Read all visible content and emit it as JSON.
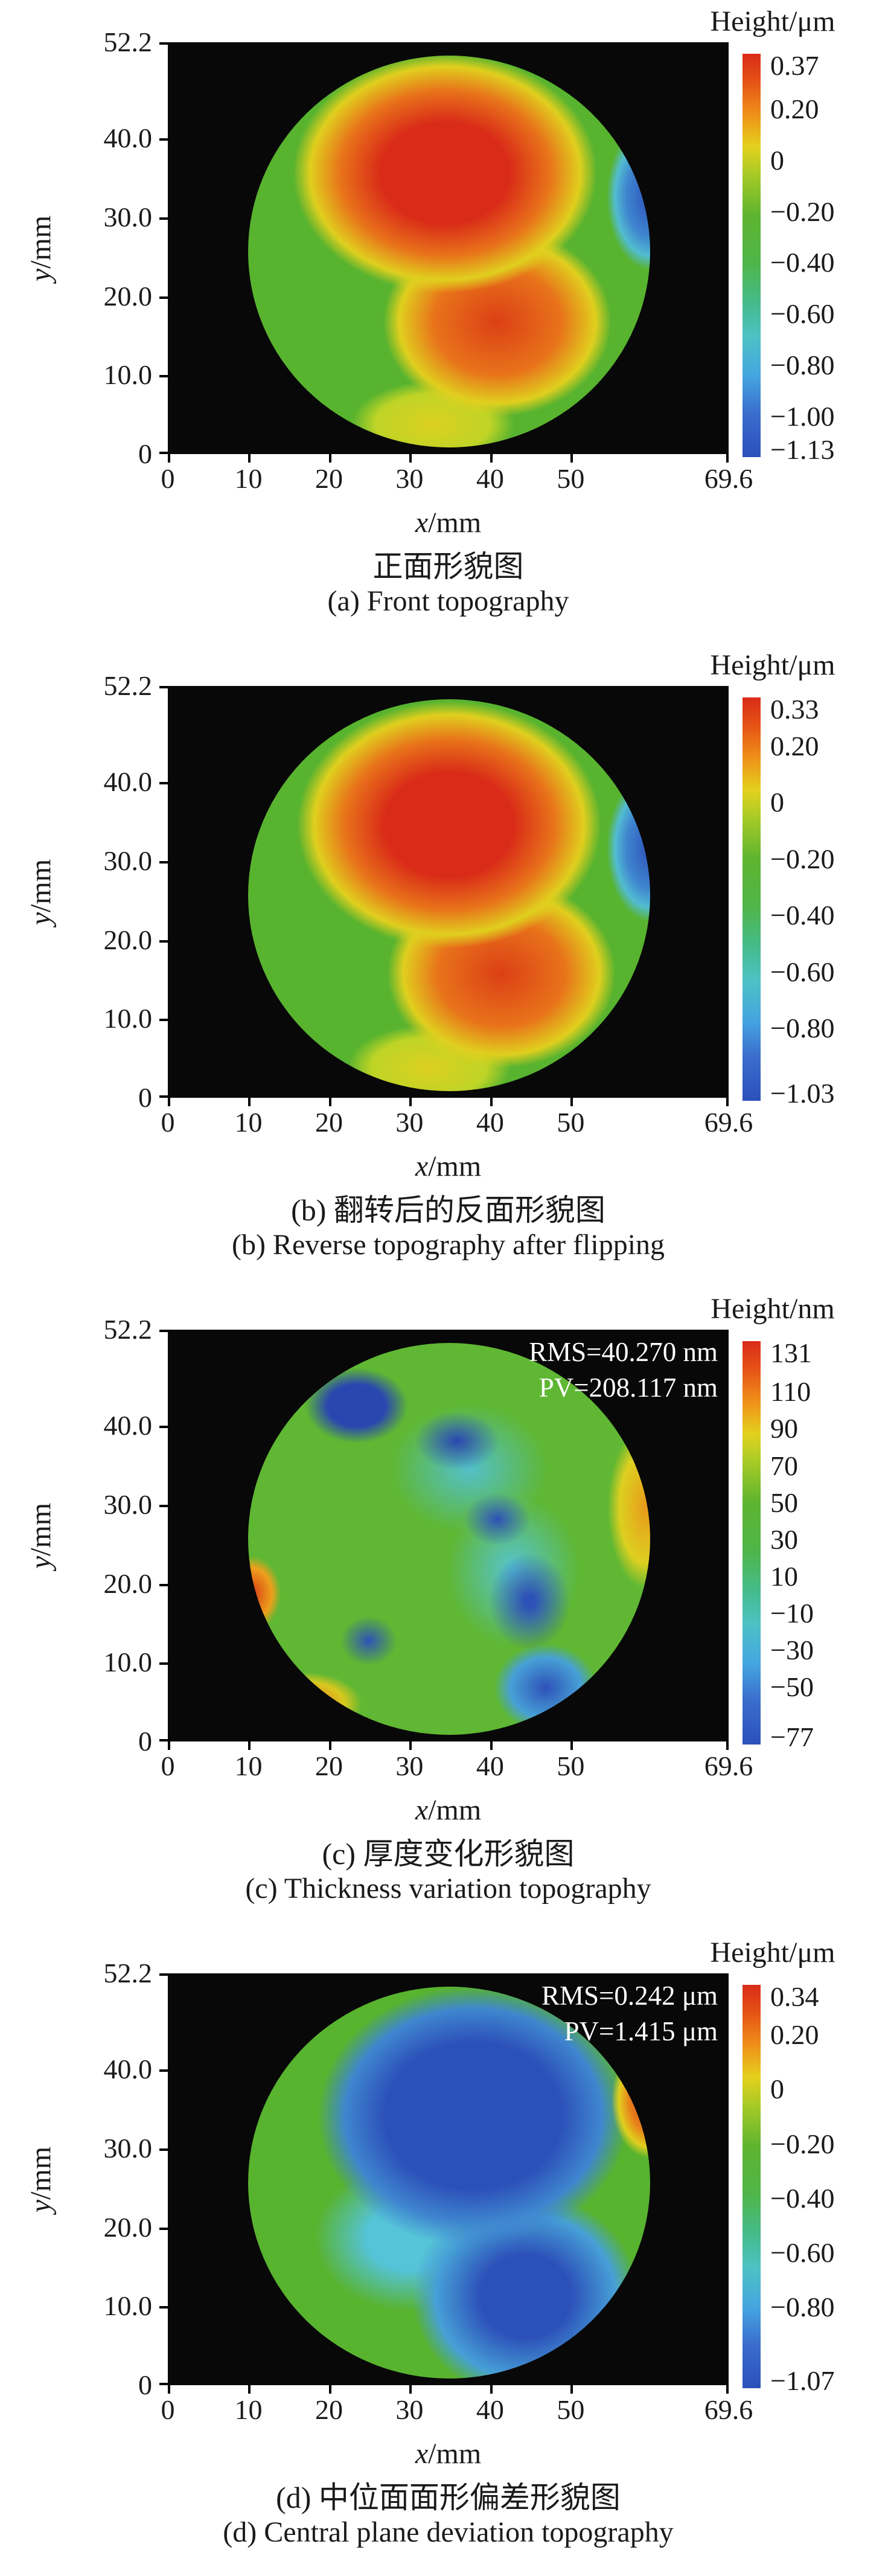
{
  "figure": {
    "panels": [
      {
        "id": "a",
        "colorbar_title": "Height/μm",
        "wafer_class": "wafer-front",
        "x_axis": {
          "label_var": "x",
          "label_unit": "/mm",
          "max": 69.6,
          "ticks": [
            {
              "value": 0,
              "label": "0"
            },
            {
              "value": 10,
              "label": "10"
            },
            {
              "value": 20,
              "label": "20"
            },
            {
              "value": 30,
              "label": "30"
            },
            {
              "value": 40,
              "label": "40"
            },
            {
              "value": 50,
              "label": "50"
            },
            {
              "value": 69.6,
              "label": "69.6"
            }
          ]
        },
        "y_axis": {
          "label_var": "y",
          "label_unit": "/mm",
          "max": 52.2,
          "ticks": [
            {
              "value": 52.2,
              "label": "52.2"
            },
            {
              "value": 40,
              "label": "40.0"
            },
            {
              "value": 30,
              "label": "30.0"
            },
            {
              "value": 20,
              "label": "20.0"
            },
            {
              "value": 10,
              "label": "10.0"
            },
            {
              "value": 0,
              "label": "0"
            }
          ]
        },
        "colorbar": {
          "max": 0.37,
          "min": -1.13,
          "ticks": [
            {
              "value": 0.37,
              "label": "0.37"
            },
            {
              "value": 0.2,
              "label": "0.20"
            },
            {
              "value": 0,
              "label": "0"
            },
            {
              "value": -0.2,
              "label": "−0.20"
            },
            {
              "value": -0.4,
              "label": "−0.40"
            },
            {
              "value": -0.6,
              "label": "−0.60"
            },
            {
              "value": -0.8,
              "label": "−0.80"
            },
            {
              "value": -1.0,
              "label": "−1.00"
            },
            {
              "value": -1.13,
              "label": "−1.13"
            }
          ]
        },
        "annotation": null,
        "caption_zh": "正面形貌图",
        "caption_en": "(a) Front topography"
      },
      {
        "id": "b",
        "colorbar_title": "Height/μm",
        "wafer_class": "wafer-reverse",
        "x_axis": {
          "label_var": "x",
          "label_unit": "/mm",
          "max": 69.6,
          "ticks": [
            {
              "value": 0,
              "label": "0"
            },
            {
              "value": 10,
              "label": "10"
            },
            {
              "value": 20,
              "label": "20"
            },
            {
              "value": 30,
              "label": "30"
            },
            {
              "value": 40,
              "label": "40"
            },
            {
              "value": 50,
              "label": "50"
            },
            {
              "value": 69.6,
              "label": "69.6"
            }
          ]
        },
        "y_axis": {
          "label_var": "y",
          "label_unit": "/mm",
          "max": 52.2,
          "ticks": [
            {
              "value": 52.2,
              "label": "52.2"
            },
            {
              "value": 40,
              "label": "40.0"
            },
            {
              "value": 30,
              "label": "30.0"
            },
            {
              "value": 20,
              "label": "20.0"
            },
            {
              "value": 10,
              "label": "10.0"
            },
            {
              "value": 0,
              "label": "0"
            }
          ]
        },
        "colorbar": {
          "max": 0.33,
          "min": -1.03,
          "ticks": [
            {
              "value": 0.33,
              "label": "0.33"
            },
            {
              "value": 0.2,
              "label": "0.20"
            },
            {
              "value": 0,
              "label": "0"
            },
            {
              "value": -0.2,
              "label": "−0.20"
            },
            {
              "value": -0.4,
              "label": "−0.40"
            },
            {
              "value": -0.6,
              "label": "−0.60"
            },
            {
              "value": -0.8,
              "label": "−0.80"
            },
            {
              "value": -1.03,
              "label": "−1.03"
            }
          ]
        },
        "annotation": null,
        "caption_zh": "(b) 翻转后的反面形貌图",
        "caption_en": "(b) Reverse topography after flipping"
      },
      {
        "id": "c",
        "colorbar_title": "Height/nm",
        "wafer_class": "wafer-thickness",
        "x_axis": {
          "label_var": "x",
          "label_unit": "/mm",
          "max": 69.6,
          "ticks": [
            {
              "value": 0,
              "label": "0"
            },
            {
              "value": 10,
              "label": "10"
            },
            {
              "value": 20,
              "label": "20"
            },
            {
              "value": 30,
              "label": "30"
            },
            {
              "value": 40,
              "label": "40"
            },
            {
              "value": 50,
              "label": "50"
            },
            {
              "value": 69.6,
              "label": "69.6"
            }
          ]
        },
        "y_axis": {
          "label_var": "y",
          "label_unit": "/mm",
          "max": 52.2,
          "ticks": [
            {
              "value": 52.2,
              "label": "52.2"
            },
            {
              "value": 40,
              "label": "40.0"
            },
            {
              "value": 30,
              "label": "30.0"
            },
            {
              "value": 20,
              "label": "20.0"
            },
            {
              "value": 10,
              "label": "10.0"
            },
            {
              "value": 0,
              "label": "0"
            }
          ]
        },
        "colorbar": {
          "max": 131,
          "min": -77,
          "ticks": [
            {
              "value": 131,
              "label": "131"
            },
            {
              "value": 110,
              "label": "110"
            },
            {
              "value": 90,
              "label": "90"
            },
            {
              "value": 70,
              "label": "70"
            },
            {
              "value": 50,
              "label": "50"
            },
            {
              "value": 30,
              "label": "30"
            },
            {
              "value": 10,
              "label": "10"
            },
            {
              "value": -10,
              "label": "−10"
            },
            {
              "value": -30,
              "label": "−30"
            },
            {
              "value": -50,
              "label": "−50"
            },
            {
              "value": -77,
              "label": "−77"
            }
          ]
        },
        "annotation": {
          "rms": "RMS=40.270 nm",
          "pv": "PV=208.117 nm"
        },
        "caption_zh": "(c) 厚度变化形貌图",
        "caption_en": "(c) Thickness variation topography"
      },
      {
        "id": "d",
        "colorbar_title": "Height/μm",
        "wafer_class": "wafer-deviation",
        "x_axis": {
          "label_var": "x",
          "label_unit": "/mm",
          "max": 69.6,
          "ticks": [
            {
              "value": 0,
              "label": "0"
            },
            {
              "value": 10,
              "label": "10"
            },
            {
              "value": 20,
              "label": "20"
            },
            {
              "value": 30,
              "label": "30"
            },
            {
              "value": 40,
              "label": "40"
            },
            {
              "value": 50,
              "label": "50"
            },
            {
              "value": 69.6,
              "label": "69.6"
            }
          ]
        },
        "y_axis": {
          "label_var": "y",
          "label_unit": "/mm",
          "max": 52.2,
          "ticks": [
            {
              "value": 52.2,
              "label": "52.2"
            },
            {
              "value": 40,
              "label": "40.0"
            },
            {
              "value": 30,
              "label": "30.0"
            },
            {
              "value": 20,
              "label": "20.0"
            },
            {
              "value": 10,
              "label": "10.0"
            },
            {
              "value": 0,
              "label": "0"
            }
          ]
        },
        "colorbar": {
          "max": 0.34,
          "min": -1.07,
          "ticks": [
            {
              "value": 0.34,
              "label": "0.34"
            },
            {
              "value": 0.2,
              "label": "0.20"
            },
            {
              "value": 0,
              "label": "0"
            },
            {
              "value": -0.2,
              "label": "−0.20"
            },
            {
              "value": -0.4,
              "label": "−0.40"
            },
            {
              "value": -0.6,
              "label": "−0.60"
            },
            {
              "value": -0.8,
              "label": "−0.80"
            },
            {
              "value": -1.07,
              "label": "−1.07"
            }
          ]
        },
        "annotation": {
          "rms": "RMS=0.242 μm",
          "pv": "PV=1.415 μm"
        },
        "caption_zh": "(d) 中位面面形偏差形貌图",
        "caption_en": "(d) Central plane deviation topography"
      }
    ]
  },
  "chart_data": [
    {
      "type": "heatmap",
      "subplot": "a",
      "title_zh": "正面形貌图",
      "title_en": "(a) Front topography",
      "xlabel": "x/mm",
      "ylabel": "y/mm",
      "x_range": [
        0,
        69.6
      ],
      "y_range": [
        0,
        52.2
      ],
      "x_ticks": [
        0,
        10,
        20,
        30,
        40,
        50,
        69.6
      ],
      "y_ticks": [
        0,
        10.0,
        20.0,
        30.0,
        40.0,
        52.2
      ],
      "colorbar_label": "Height/μm",
      "colorbar_range": [
        -1.13,
        0.37
      ],
      "colorbar_ticks": [
        0.37,
        0.2,
        0,
        -0.2,
        -0.4,
        -0.6,
        -0.8,
        -1.0,
        -1.13
      ],
      "wafer_extent_mm": {
        "x": [
          10,
          60
        ],
        "y": [
          2,
          51.5
        ]
      },
      "description": "Circular wafer map on black background: high region (red, ~+0.3 μm) upper-center spreading to lower-right, green (~0 μm) left half and rim, narrow blue low band (~−1 μm) on right edge, yellow transition bands"
    },
    {
      "type": "heatmap",
      "subplot": "b",
      "title_zh": "(b) 翻转后的反面形貌图",
      "title_en": "(b) Reverse topography after flipping",
      "xlabel": "x/mm",
      "ylabel": "y/mm",
      "x_range": [
        0,
        69.6
      ],
      "y_range": [
        0,
        52.2
      ],
      "x_ticks": [
        0,
        10,
        20,
        30,
        40,
        50,
        69.6
      ],
      "y_ticks": [
        0,
        10.0,
        20.0,
        30.0,
        40.0,
        52.2
      ],
      "colorbar_label": "Height/μm",
      "colorbar_range": [
        -1.03,
        0.33
      ],
      "colorbar_ticks": [
        0.33,
        0.2,
        0,
        -0.2,
        -0.4,
        -0.6,
        -0.8,
        -1.03
      ],
      "wafer_extent_mm": {
        "x": [
          10,
          60
        ],
        "y": [
          2,
          51.5
        ]
      },
      "description": "Nearly identical pattern to subplot (a): red high region upper-center to lower-right, green left half, blue low sliver on right edge"
    },
    {
      "type": "heatmap",
      "subplot": "c",
      "title_zh": "(c) 厚度变化形貌图",
      "title_en": "(c) Thickness variation topography",
      "xlabel": "x/mm",
      "ylabel": "y/mm",
      "x_range": [
        0,
        69.6
      ],
      "y_range": [
        0,
        52.2
      ],
      "x_ticks": [
        0,
        10,
        20,
        30,
        40,
        50,
        69.6
      ],
      "y_ticks": [
        0,
        10.0,
        20.0,
        30.0,
        40.0,
        52.2
      ],
      "colorbar_label": "Height/nm",
      "colorbar_range": [
        -77,
        131
      ],
      "colorbar_ticks": [
        131,
        110,
        90,
        70,
        50,
        30,
        10,
        -10,
        -30,
        -50,
        -77
      ],
      "rms_nm": 40.27,
      "pv_nm": 208.117,
      "annotation_lines": [
        "RMS=40.270 nm",
        "PV=208.117 nm"
      ],
      "description": "Mostly green (~30 nm) wafer with scattered dark-blue low blobs (upper-left, center, right of center, lower-right), cyan patches, orange-red hot spots on left edge and lower-left rim, yellow-orange band along right edge"
    },
    {
      "type": "heatmap",
      "subplot": "d",
      "title_zh": "(d) 中位面面形偏差形貌图",
      "title_en": "(d) Central plane deviation topography",
      "xlabel": "x/mm",
      "ylabel": "y/mm",
      "x_range": [
        0,
        69.6
      ],
      "y_range": [
        0,
        52.2
      ],
      "x_ticks": [
        0,
        10,
        20,
        30,
        40,
        50,
        69.6
      ],
      "y_ticks": [
        0,
        10.0,
        20.0,
        30.0,
        40.0,
        52.2
      ],
      "colorbar_label": "Height/μm",
      "colorbar_range": [
        -1.07,
        0.34
      ],
      "colorbar_ticks": [
        0.34,
        0.2,
        0,
        -0.2,
        -0.4,
        -0.6,
        -0.8,
        -1.07
      ],
      "rms_um": 0.242,
      "pv_um": 1.415,
      "annotation_lines": [
        "RMS=0.242 μm",
        "PV=1.415 μm"
      ],
      "description": "Large deep-blue low region (~−0.6 μm) in center-top extending to bottom-right, cyan transition, green (~0) left and top rim, red-orange high sliver (~+0.3 μm) on upper-right edge with yellow halo"
    }
  ]
}
